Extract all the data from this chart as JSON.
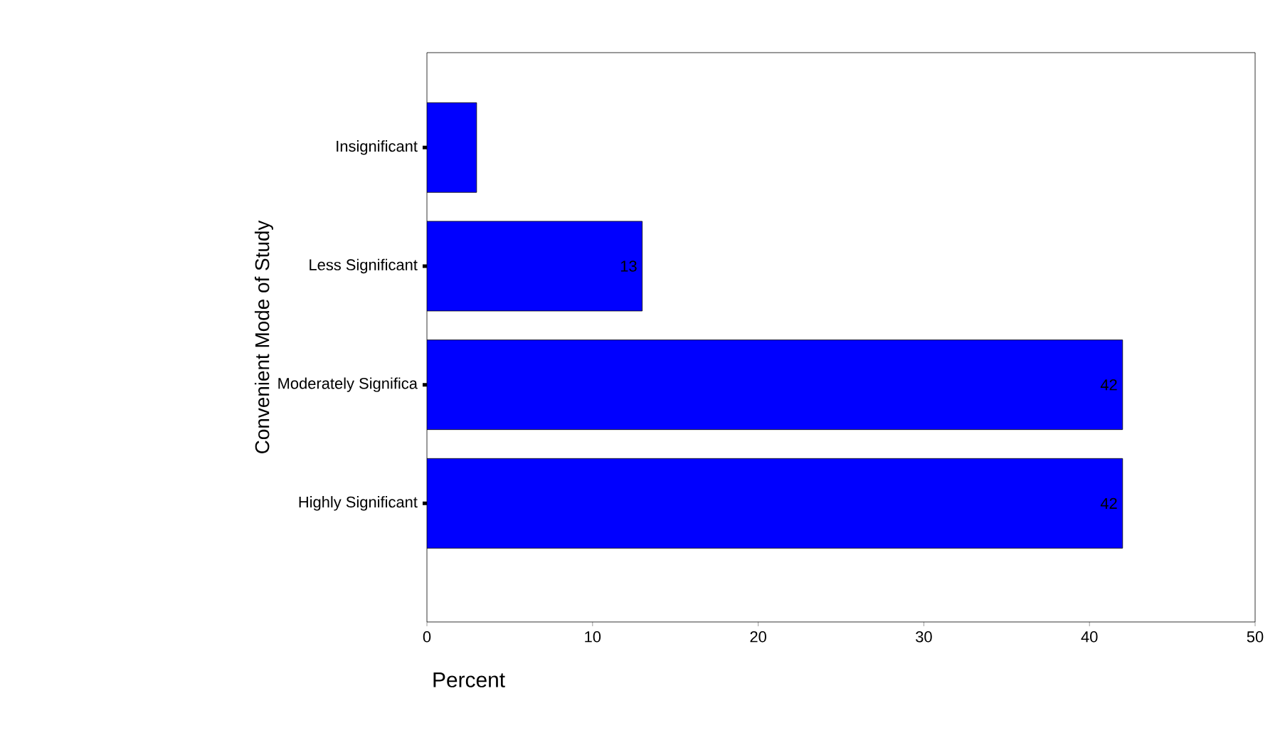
{
  "chart_data": {
    "type": "bar",
    "orientation": "horizontal",
    "xlabel": "Percent",
    "ylabel": "Convenient Mode of Study",
    "categories": [
      "Insignificant",
      "Less Significant",
      "Moderately Significa",
      "Highly Significant"
    ],
    "values": [
      3,
      13,
      42,
      42
    ],
    "value_labels": [
      null,
      "13",
      "42",
      "42"
    ],
    "color": "#0000ff",
    "xlim": [
      0,
      50
    ],
    "xticks": [
      0,
      10,
      20,
      30,
      40,
      50
    ],
    "grid": false
  }
}
